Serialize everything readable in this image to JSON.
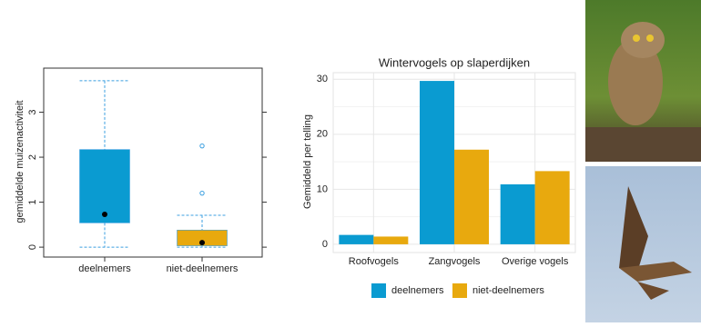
{
  "chart_data": [
    {
      "type": "box",
      "y_label": "gemiddelde muizenactiviteit",
      "categories": [
        "deelnemers",
        "niet-deelnemers"
      ],
      "colors": [
        "#0a9bd1",
        "#e8a90e"
      ],
      "whisker_color": "#3b9fe0",
      "boxes": [
        {
          "whisker_low": 0,
          "q1": 0.54,
          "q3": 2.17,
          "whisker_high": 3.7,
          "mean": 0.73,
          "outliers": []
        },
        {
          "whisker_low": 0,
          "q1": 0.03,
          "q3": 0.38,
          "whisker_high": 0.71,
          "mean": 0.1,
          "outliers": [
            1.2,
            2.25
          ]
        }
      ],
      "ylim": [
        -0.22,
        3.98
      ],
      "yticks": [
        0,
        1,
        2,
        3
      ]
    },
    {
      "type": "bar",
      "title": "Wintervogels op slaperdijken",
      "y_label": "Gemiddeld per telling",
      "categories": [
        "Roofvogels",
        "Zangvogels",
        "Overige vogels"
      ],
      "series": [
        {
          "name": "deelnemers",
          "color": "#0a9bd1",
          "values": [
            1.7,
            29.7,
            10.9
          ]
        },
        {
          "name": "niet-deelnemers",
          "color": "#e8a90e",
          "values": [
            1.4,
            17.2,
            13.3
          ]
        }
      ],
      "ylim": [
        -1.5,
        31.2
      ],
      "yticks": [
        0,
        10,
        20,
        30
      ],
      "grid": true,
      "legend": "bottom"
    }
  ]
}
